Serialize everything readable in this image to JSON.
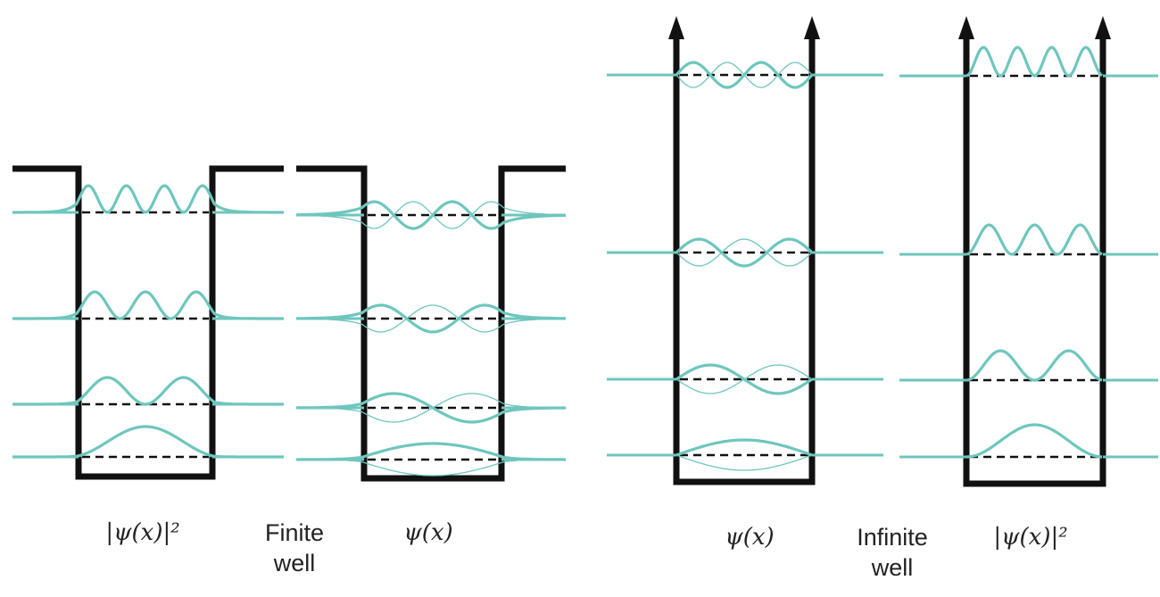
{
  "labels": {
    "finite_prob": "|ψ(x)|²",
    "finite_well": [
      "Finite",
      "well"
    ],
    "finite_psi": "ψ(x)",
    "infinite_psi": "ψ(x)",
    "infinite_well": [
      "Infinite",
      "well"
    ],
    "infinite_prob": "|ψ(x)|²"
  },
  "colors": {
    "wave": "#6ec6bd",
    "well": "#111111",
    "baseline": "#111111",
    "background": "#ffffff"
  },
  "diagram": {
    "panels": [
      {
        "name": "finite-prob",
        "well": "finite",
        "shows": "probability",
        "levels": [
          1,
          2,
          3,
          4
        ]
      },
      {
        "name": "finite-psi",
        "well": "finite",
        "shows": "wavefunction",
        "levels": [
          1,
          2,
          3,
          4
        ]
      },
      {
        "name": "infinite-psi",
        "well": "infinite",
        "shows": "wavefunction",
        "levels": [
          1,
          2,
          3,
          4
        ]
      },
      {
        "name": "infinite-prob",
        "well": "infinite",
        "shows": "probability",
        "levels": [
          1,
          2,
          3,
          4
        ]
      }
    ]
  }
}
